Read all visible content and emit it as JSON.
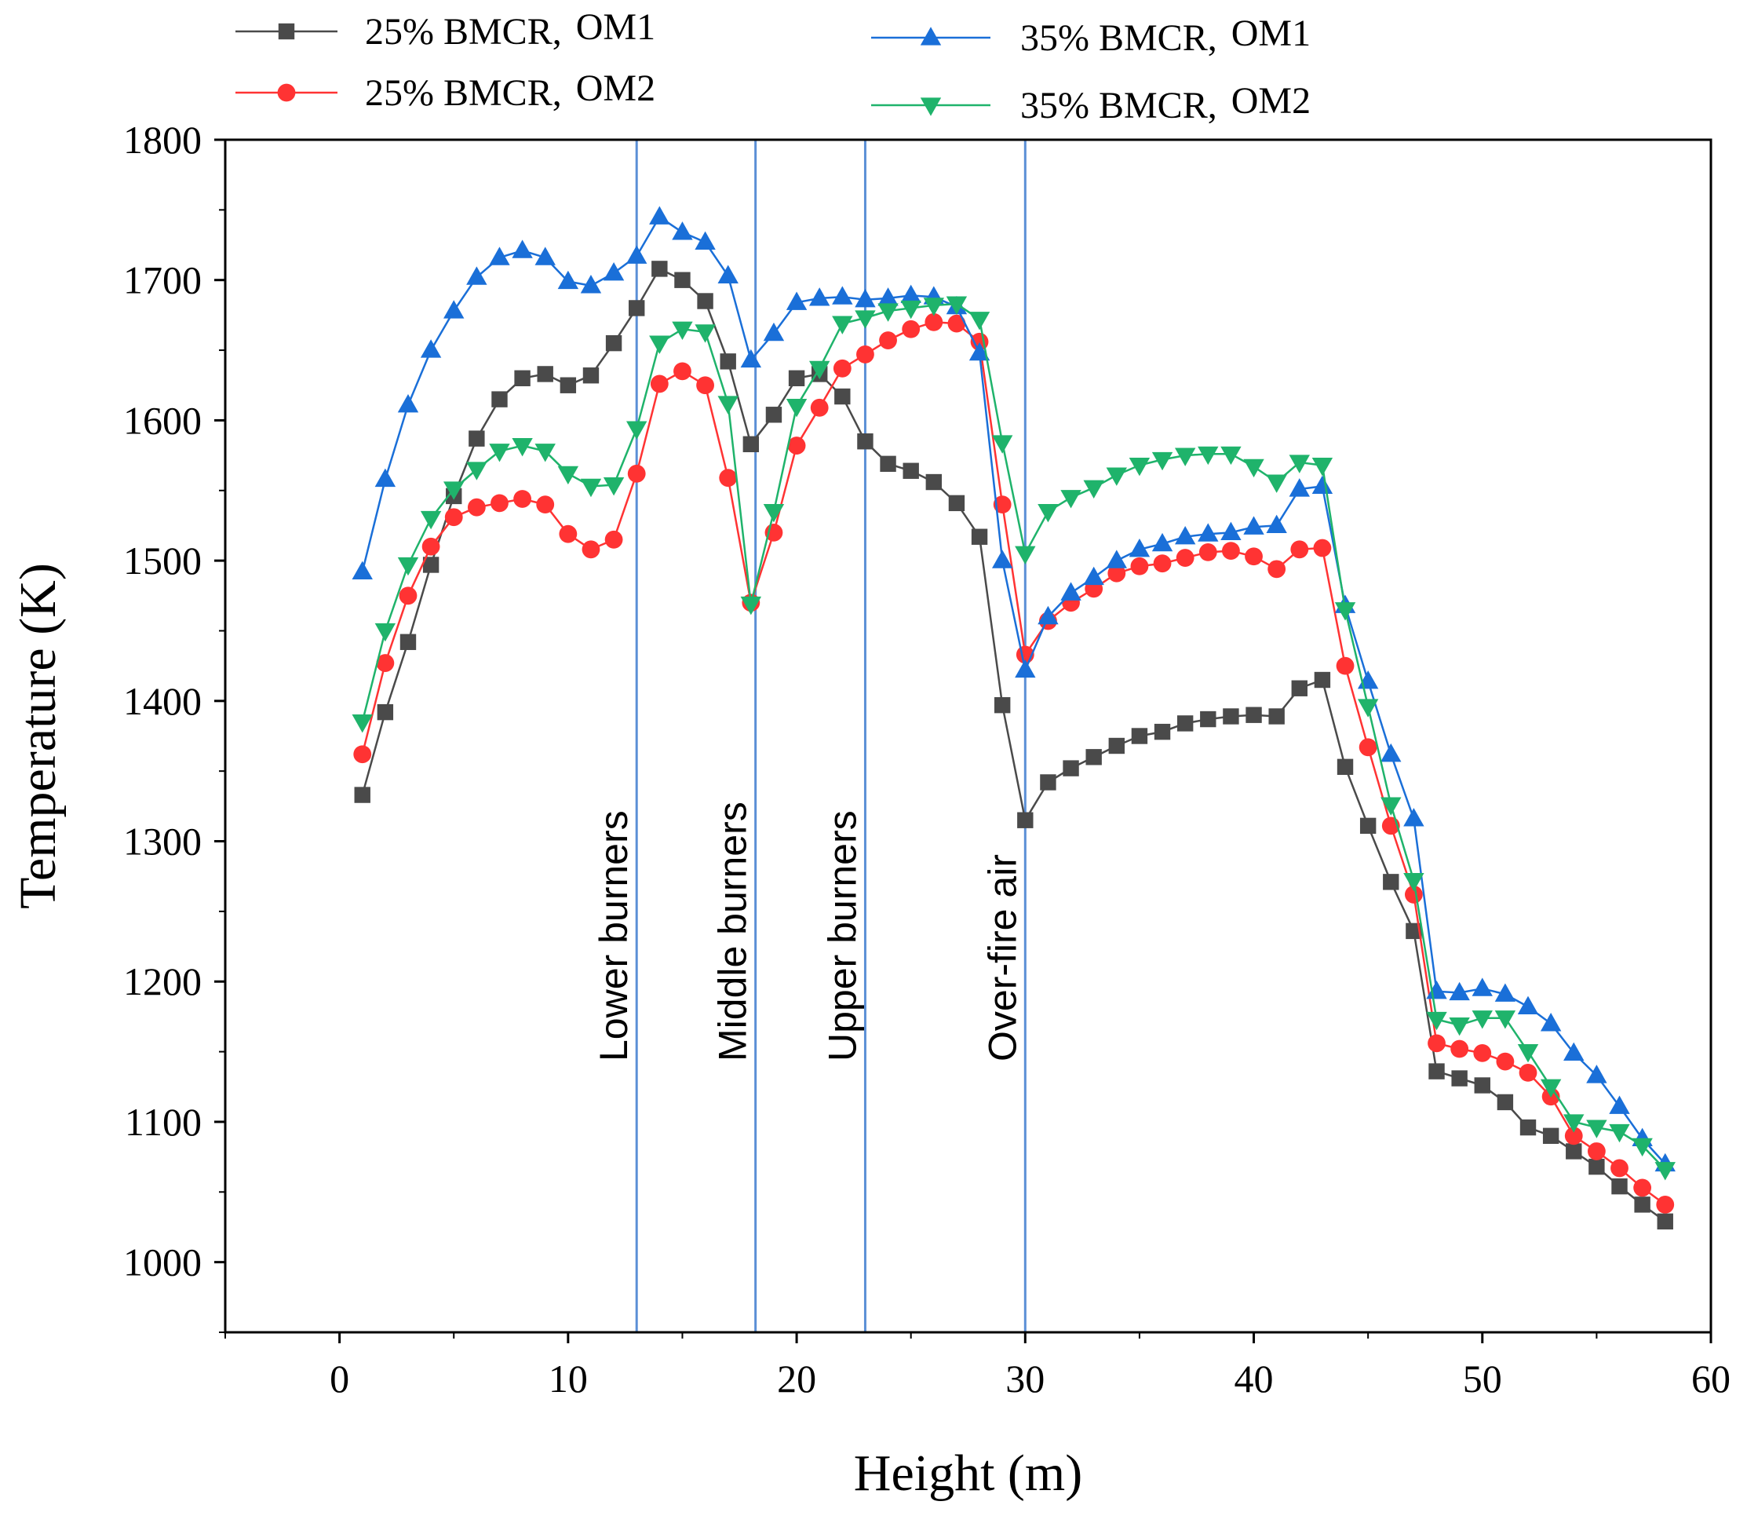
{
  "chart_data": {
    "type": "line",
    "title": "",
    "xlabel": "Height (m)",
    "ylabel": "Temperature (K)",
    "xlim": [
      -5,
      60
    ],
    "ylim": [
      950,
      1800
    ],
    "xticks": [
      0,
      10,
      20,
      30,
      40,
      50,
      60
    ],
    "yticks": [
      1000,
      1100,
      1200,
      1300,
      1400,
      1500,
      1600,
      1700,
      1800
    ],
    "grid": false,
    "legend_position": "top",
    "x": [
      1,
      2,
      3,
      4,
      5,
      6,
      7,
      8,
      9,
      10,
      11,
      12,
      13,
      14,
      15,
      16,
      17,
      18,
      19,
      20,
      21,
      22,
      23,
      24,
      25,
      26,
      27,
      28,
      29,
      30,
      31,
      32,
      33,
      34,
      35,
      36,
      37,
      38,
      39,
      40,
      41,
      42,
      43,
      44,
      45,
      46,
      47,
      48,
      49,
      50,
      51,
      52,
      53,
      54,
      55,
      56,
      57,
      58
    ],
    "series": [
      {
        "name": "25% BMCR, OM1",
        "label_main": "25% BMCR,",
        "label_mode": "OM1",
        "color": "#4a4a4a",
        "marker": "square",
        "values": [
          1333,
          1392,
          1442,
          1497,
          1546,
          1587,
          1615,
          1630,
          1633,
          1625,
          1632,
          1655,
          1680,
          1708,
          1700,
          1685,
          1642,
          1583,
          1604,
          1630,
          1633,
          1617,
          1585,
          1569,
          1564,
          1556,
          1541,
          1517,
          1397,
          1315,
          1342,
          1352,
          1360,
          1368,
          1375,
          1378,
          1384,
          1387,
          1389,
          1390,
          1389,
          1409,
          1415,
          1353,
          1311,
          1271,
          1236,
          1136,
          1131,
          1126,
          1114,
          1096,
          1090,
          1079,
          1068,
          1054,
          1041,
          1029
        ]
      },
      {
        "name": "25% BMCR, OM2",
        "label_main": "25% BMCR,",
        "label_mode": "OM2",
        "color": "#ff3333",
        "marker": "circle",
        "values": [
          1362,
          1427,
          1475,
          1510,
          1531,
          1538,
          1541,
          1544,
          1540,
          1519,
          1508,
          1515,
          1562,
          1626,
          1635,
          1625,
          1559,
          1470,
          1520,
          1582,
          1609,
          1637,
          1647,
          1657,
          1665,
          1670,
          1669,
          1656,
          1540,
          1433,
          1457,
          1470,
          1480,
          1491,
          1496,
          1498,
          1502,
          1506,
          1507,
          1503,
          1494,
          1508,
          1509,
          1425,
          1367,
          1311,
          1262,
          1156,
          1152,
          1149,
          1143,
          1135,
          1118,
          1090,
          1079,
          1067,
          1053,
          1041
        ]
      },
      {
        "name": "35% BMCR, OM1",
        "label_main": "35% BMCR,",
        "label_mode": "OM1",
        "color": "#1a6fd8",
        "marker": "triangle-up",
        "values": [
          1492,
          1558,
          1611,
          1650,
          1678,
          1702,
          1716,
          1721,
          1716,
          1699,
          1696,
          1705,
          1717,
          1745,
          1734,
          1727,
          1703,
          1643,
          1662,
          1684,
          1687,
          1688,
          1686,
          1687,
          1689,
          1688,
          1681,
          1648,
          1500,
          1422,
          1460,
          1477,
          1488,
          1500,
          1508,
          1512,
          1517,
          1519,
          1520,
          1524,
          1525,
          1551,
          1553,
          1468,
          1414,
          1362,
          1316,
          1193,
          1192,
          1195,
          1191,
          1182,
          1170,
          1149,
          1133,
          1111,
          1088,
          1070
        ]
      },
      {
        "name": "35% BMCR, OM2",
        "label_main": "35% BMCR,",
        "label_mode": "OM2",
        "color": "#1fb36b",
        "marker": "triangle-down",
        "values": [
          1385,
          1450,
          1497,
          1530,
          1551,
          1565,
          1578,
          1582,
          1578,
          1562,
          1553,
          1554,
          1594,
          1655,
          1665,
          1663,
          1612,
          1469,
          1535,
          1610,
          1637,
          1669,
          1673,
          1678,
          1680,
          1682,
          1683,
          1672,
          1584,
          1505,
          1535,
          1545,
          1552,
          1561,
          1568,
          1572,
          1575,
          1576,
          1576,
          1567,
          1556,
          1570,
          1568,
          1465,
          1396,
          1326,
          1272,
          1173,
          1169,
          1174,
          1174,
          1150,
          1125,
          1100,
          1096,
          1093,
          1083,
          1066
        ]
      }
    ],
    "vertical_markers": [
      {
        "x": 13,
        "label": "Lower burners",
        "color": "#5b8fd6"
      },
      {
        "x": 18.2,
        "label": "Middle burners",
        "color": "#5b8fd6"
      },
      {
        "x": 23,
        "label": "Upper burners",
        "color": "#5b8fd6"
      },
      {
        "x": 30,
        "label": "Over-fire air",
        "color": "#5b8fd6"
      }
    ]
  }
}
